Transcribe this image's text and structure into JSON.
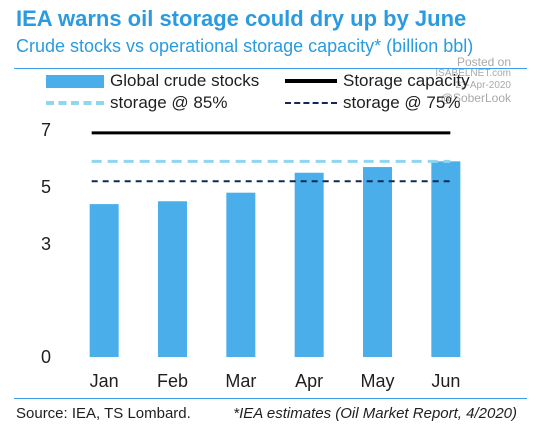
{
  "header": {
    "title": "IEA warns oil storage could dry up by June",
    "subtitle": "Crude stocks vs operational storage capacity* (billion bbl)"
  },
  "watermark": {
    "line1": "Posted on",
    "line2": "ISABELNET.com",
    "line3": "23-Apr-2020",
    "line4": "@SoberLook"
  },
  "footer": {
    "source": "Source: IEA, TS Lombard.",
    "note": "*IEA estimates (Oil Market Report, 4/2020)"
  },
  "colors": {
    "title": "#2a9be0",
    "bars": "#4aaeea",
    "storage_capacity": "#000000",
    "storage_85": "#8fd6ef",
    "storage_75": "#0e2a57"
  },
  "chart_data": {
    "type": "bar",
    "title": "IEA warns oil storage could dry up by June",
    "subtitle": "Crude stocks vs operational storage capacity* (billion bbl)",
    "categories": [
      "Jan",
      "Feb",
      "Mar",
      "Apr",
      "May",
      "Jun"
    ],
    "series": [
      {
        "name": "Global crude stocks",
        "kind": "bar",
        "values": [
          4.4,
          4.5,
          4.8,
          5.5,
          5.7,
          5.9
        ]
      }
    ],
    "reference_lines": [
      {
        "name": "Storage capacity",
        "style": "solid",
        "value": 6.9
      },
      {
        "name": "storage @ 85%",
        "style": "dashed",
        "value": 5.9
      },
      {
        "name": "storage @ 75%",
        "style": "dashed",
        "value": 5.2
      }
    ],
    "y_ticks": [
      "0",
      "3",
      "5",
      "7"
    ],
    "ylim": [
      0,
      7.5
    ],
    "y_scale_note": "non-linear axis",
    "grid": false,
    "legend_position": "top"
  }
}
